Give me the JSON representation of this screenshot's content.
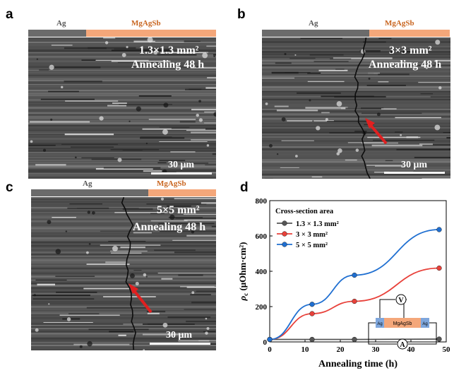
{
  "panels": [
    {
      "letter": "a",
      "ag_label": "Ag",
      "mg_label": "MgAgSb",
      "area_text": "1.3×1.3 mm²",
      "anneal_text": "Annealing  48 h",
      "scale_text": "30 μm"
    },
    {
      "letter": "b",
      "ag_label": "Ag",
      "mg_label": "MgAgSb",
      "area_text": "3×3 mm²",
      "anneal_text": "Annealing  48 h",
      "scale_text": "30 μm"
    },
    {
      "letter": "c",
      "ag_label": "Ag",
      "mg_label": "MgAgSb",
      "area_text": "5×5 mm²",
      "anneal_text": "Annealing  48 h",
      "scale_text": "30 μm"
    },
    {
      "letter": "d"
    }
  ],
  "colors": {
    "ag_bar": "#6b6b6b",
    "mg_bar": "#f4a77a",
    "mg_text": "#c8641e",
    "arrow": "#e02020",
    "series_gray": "#555555",
    "series_red": "#e8413a",
    "series_blue": "#1f6fd1"
  },
  "chart_data": {
    "type": "line",
    "xlabel": "Annealing time (h)",
    "ylabel_main": "ρ",
    "ylabel_sub": "c",
    "ylabel_unit": " (μOhm·cm²)",
    "xlim": [
      0,
      50
    ],
    "ylim": [
      0,
      800
    ],
    "xticks": [
      0,
      10,
      20,
      30,
      40,
      50
    ],
    "yticks": [
      0,
      200,
      400,
      600,
      800
    ],
    "legend_title": "Cross-section area",
    "series": [
      {
        "name": "1.3 × 1.3 mm²",
        "x": [
          0,
          12,
          24,
          48
        ],
        "y": [
          14,
          14,
          14,
          16
        ]
      },
      {
        "name": "3 × 3 mm²",
        "x": [
          0,
          12,
          24,
          48
        ],
        "y": [
          14,
          160,
          230,
          418
        ]
      },
      {
        "name": "5 × 5 mm²",
        "x": [
          0,
          12,
          24,
          48
        ],
        "y": [
          14,
          213,
          378,
          636
        ]
      }
    ],
    "inset": {
      "voltmeter": "V",
      "ammeter": "A",
      "sample": "MgAgSb",
      "contact_left": "Ag",
      "contact_right": "Ag"
    }
  }
}
